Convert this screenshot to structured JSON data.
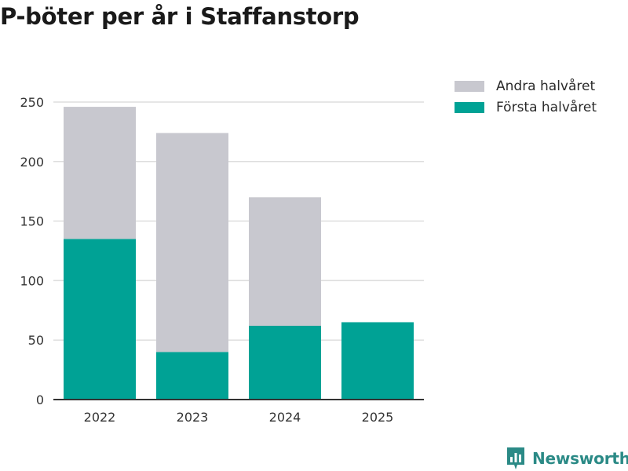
{
  "title": "P-böter per år i Staffanstorp",
  "brand": {
    "name": "Newsworthy",
    "icon": "newsworthy-logo-icon"
  },
  "colors": {
    "first_half": "#00a295",
    "second_half": "#c8c8cf",
    "grid": "#dedede",
    "axis": "#333333",
    "brand": "#2b8a86"
  },
  "legend": [
    {
      "key": "second_half",
      "label": "Andra halvåret"
    },
    {
      "key": "first_half",
      "label": "Första halvåret"
    }
  ],
  "chart_data": {
    "type": "bar",
    "stacked": true,
    "title": "P-böter per år i Staffanstorp",
    "categories": [
      "2022",
      "2023",
      "2024",
      "2025"
    ],
    "series": [
      {
        "name": "Första halvåret",
        "key": "first_half",
        "values": [
          135,
          40,
          62,
          65
        ]
      },
      {
        "name": "Andra halvåret",
        "key": "second_half",
        "values": [
          111,
          184,
          108,
          0
        ]
      }
    ],
    "yticks": [
      0,
      50,
      100,
      150,
      200,
      250
    ],
    "ylim": [
      0,
      250
    ],
    "xlabel": "",
    "ylabel": "",
    "grid": true,
    "legend_position": "top-right"
  }
}
